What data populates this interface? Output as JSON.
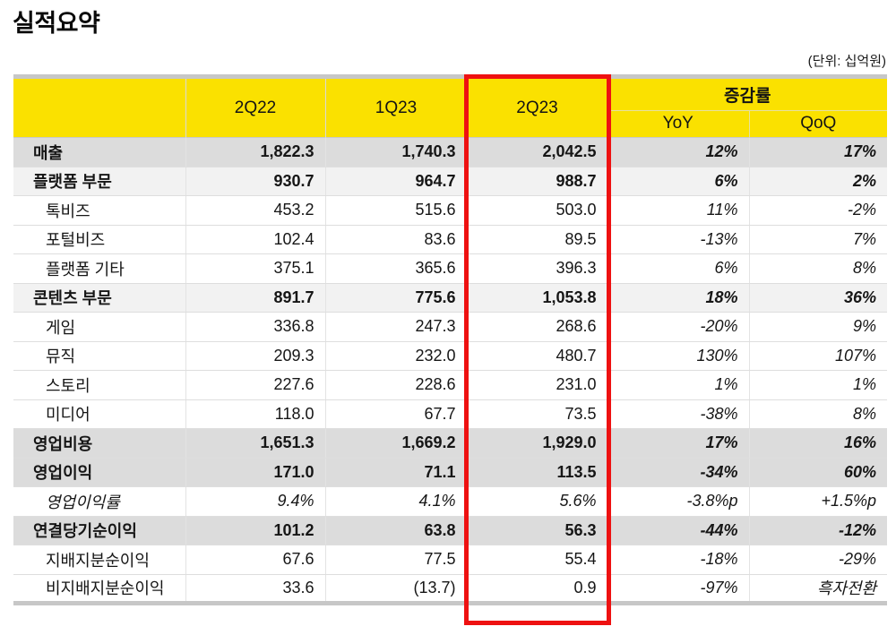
{
  "page": {
    "title": "실적요약",
    "unit_note": "(단위: 십억원)"
  },
  "colors": {
    "header_yellow": "#FAE100",
    "row_dark_gray": "#DCDCDC",
    "row_light_gray": "#F2F2F2",
    "band_gray": "#C7C7C7",
    "highlight_red": "#EE1111"
  },
  "table": {
    "header": {
      "col_2q22": "2Q22",
      "col_1q23": "1Q23",
      "col_2q23": "2Q23",
      "growth_group": "증감률",
      "col_yoy": "YoY",
      "col_qoq": "QoQ"
    },
    "highlight": {
      "type": "red-box",
      "column": "2Q23"
    },
    "rows": [
      {
        "label": "매출",
        "values": [
          "1,822.3",
          "1,740.3",
          "2,042.5",
          "12%",
          "17%"
        ],
        "emphasis": "dark",
        "indent": 0,
        "italic": false
      },
      {
        "label": "플랫폼 부문",
        "values": [
          "930.7",
          "964.7",
          "988.7",
          "6%",
          "2%"
        ],
        "emphasis": "light",
        "indent": 0,
        "italic": false
      },
      {
        "label": "톡비즈",
        "values": [
          "453.2",
          "515.6",
          "503.0",
          "11%",
          "-2%"
        ],
        "emphasis": "none",
        "indent": 1,
        "italic": false
      },
      {
        "label": "포털비즈",
        "values": [
          "102.4",
          "83.6",
          "89.5",
          "-13%",
          "7%"
        ],
        "emphasis": "none",
        "indent": 1,
        "italic": false
      },
      {
        "label": "플랫폼 기타",
        "values": [
          "375.1",
          "365.6",
          "396.3",
          "6%",
          "8%"
        ],
        "emphasis": "none",
        "indent": 1,
        "italic": false
      },
      {
        "label": "콘텐츠 부문",
        "values": [
          "891.7",
          "775.6",
          "1,053.8",
          "18%",
          "36%"
        ],
        "emphasis": "light",
        "indent": 0,
        "italic": false
      },
      {
        "label": "게임",
        "values": [
          "336.8",
          "247.3",
          "268.6",
          "-20%",
          "9%"
        ],
        "emphasis": "none",
        "indent": 1,
        "italic": false
      },
      {
        "label": "뮤직",
        "values": [
          "209.3",
          "232.0",
          "480.7",
          "130%",
          "107%"
        ],
        "emphasis": "none",
        "indent": 1,
        "italic": false
      },
      {
        "label": "스토리",
        "values": [
          "227.6",
          "228.6",
          "231.0",
          "1%",
          "1%"
        ],
        "emphasis": "none",
        "indent": 1,
        "italic": false
      },
      {
        "label": "미디어",
        "values": [
          "118.0",
          "67.7",
          "73.5",
          "-38%",
          "8%"
        ],
        "emphasis": "none",
        "indent": 1,
        "italic": false
      },
      {
        "label": "영업비용",
        "values": [
          "1,651.3",
          "1,669.2",
          "1,929.0",
          "17%",
          "16%"
        ],
        "emphasis": "dark",
        "indent": 0,
        "italic": false
      },
      {
        "label": "영업이익",
        "values": [
          "171.0",
          "71.1",
          "113.5",
          "-34%",
          "60%"
        ],
        "emphasis": "dark",
        "indent": 0,
        "italic": false
      },
      {
        "label": "영업이익률",
        "values": [
          "9.4%",
          "4.1%",
          "5.6%",
          "-3.8%p",
          "+1.5%p"
        ],
        "emphasis": "none",
        "indent": 1,
        "italic": true
      },
      {
        "label": "연결당기순이익",
        "values": [
          "101.2",
          "63.8",
          "56.3",
          "-44%",
          "-12%"
        ],
        "emphasis": "dark",
        "indent": 0,
        "italic": false
      },
      {
        "label": "지배지분순이익",
        "values": [
          "67.6",
          "77.5",
          "55.4",
          "-18%",
          "-29%"
        ],
        "emphasis": "none",
        "indent": 1,
        "italic": false
      },
      {
        "label": "비지배지분순이익",
        "values": [
          "33.6",
          "(13.7)",
          "0.9",
          "-97%",
          "흑자전환"
        ],
        "emphasis": "none",
        "indent": 1,
        "italic": false
      }
    ]
  }
}
